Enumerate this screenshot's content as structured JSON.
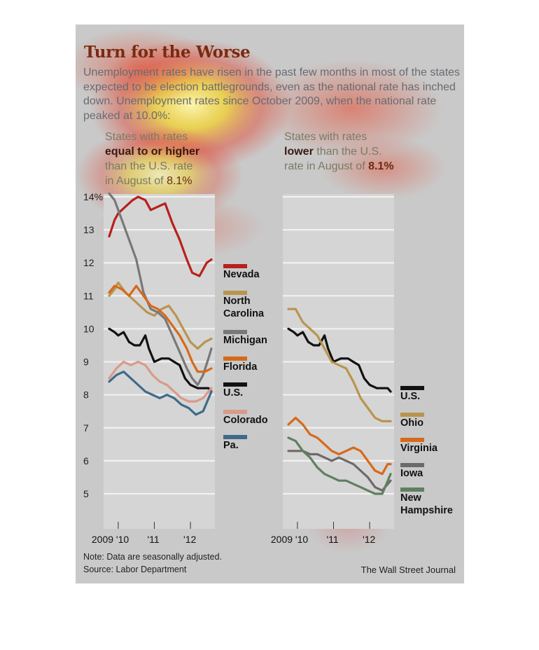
{
  "header": {
    "title": "Turn for the Worse",
    "description": "Unemployment rates have risen in the past few months in most of the states expected to be election battlegrounds, even as the national rate has inched down. Unemployment rates since October 2009, when the national rate peaked at 10.0%:"
  },
  "panels": {
    "left": {
      "line1": "States with rates",
      "line2": "equal to or higher",
      "line3": "than the U.S. rate",
      "line4_prefix": "in August of ",
      "line4_value": "8.1%"
    },
    "right": {
      "line1": "States with rates",
      "line2_bold": "lower",
      "line2_rest": " than the U.S.",
      "line3_prefix": "rate in August of ",
      "line3_value": "8.1%"
    }
  },
  "footer": {
    "note": "Note: Data are seasonally adjusted.",
    "source": "Source: Labor Department",
    "credit": "The Wall Street Journal"
  },
  "chart_data": [
    {
      "type": "line",
      "ylim": [
        4.4,
        14.4
      ],
      "y_ticks": [
        14,
        13,
        12,
        11,
        10,
        9,
        8,
        7,
        6,
        5
      ],
      "y_tick_labels": [
        "14%",
        "13",
        "12",
        "11",
        "10",
        "9",
        "8",
        "7",
        "6",
        "5"
      ],
      "xlim": [
        2009.75,
        2012.6
      ],
      "x_ticks": [
        2010,
        2011,
        2012
      ],
      "x_tick_labels": [
        "2009 '10",
        "'11",
        "'12"
      ],
      "series": [
        {
          "name": "Nevada",
          "color": "#b8201c",
          "points": [
            [
              2009.75,
              12.8
            ],
            [
              2009.9,
              13.3
            ],
            [
              2010.0,
              13.5
            ],
            [
              2010.2,
              13.7
            ],
            [
              2010.4,
              13.9
            ],
            [
              2010.55,
              14.0
            ],
            [
              2010.75,
              13.9
            ],
            [
              2010.9,
              13.6
            ],
            [
              2011.1,
              13.7
            ],
            [
              2011.3,
              13.8
            ],
            [
              2011.5,
              13.2
            ],
            [
              2011.7,
              12.7
            ],
            [
              2011.9,
              12.1
            ],
            [
              2012.05,
              11.7
            ],
            [
              2012.25,
              11.6
            ],
            [
              2012.45,
              12.0
            ],
            [
              2012.58,
              12.1
            ]
          ]
        },
        {
          "name": "North Carolina",
          "color": "#b8954e",
          "points": [
            [
              2009.75,
              11.0
            ],
            [
              2009.9,
              11.2
            ],
            [
              2010.0,
              11.4
            ],
            [
              2010.2,
              11.1
            ],
            [
              2010.4,
              10.9
            ],
            [
              2010.6,
              10.7
            ],
            [
              2010.8,
              10.5
            ],
            [
              2011.0,
              10.4
            ],
            [
              2011.2,
              10.6
            ],
            [
              2011.4,
              10.7
            ],
            [
              2011.6,
              10.4
            ],
            [
              2011.8,
              10.0
            ],
            [
              2012.0,
              9.6
            ],
            [
              2012.2,
              9.4
            ],
            [
              2012.4,
              9.6
            ],
            [
              2012.58,
              9.7
            ]
          ]
        },
        {
          "name": "Michigan",
          "color": "#7a7778",
          "points": [
            [
              2009.75,
              14.1
            ],
            [
              2009.9,
              13.9
            ],
            [
              2010.1,
              13.3
            ],
            [
              2010.3,
              12.7
            ],
            [
              2010.5,
              12.1
            ],
            [
              2010.7,
              11.1
            ],
            [
              2010.9,
              10.6
            ],
            [
              2011.1,
              10.5
            ],
            [
              2011.3,
              10.3
            ],
            [
              2011.5,
              9.8
            ],
            [
              2011.7,
              9.3
            ],
            [
              2011.9,
              8.8
            ],
            [
              2012.05,
              8.5
            ],
            [
              2012.2,
              8.3
            ],
            [
              2012.35,
              8.6
            ],
            [
              2012.5,
              9.1
            ],
            [
              2012.58,
              9.4
            ]
          ]
        },
        {
          "name": "Florida",
          "color": "#d66a1a",
          "points": [
            [
              2009.75,
              11.1
            ],
            [
              2009.9,
              11.3
            ],
            [
              2010.1,
              11.2
            ],
            [
              2010.3,
              11.0
            ],
            [
              2010.5,
              11.3
            ],
            [
              2010.7,
              11.0
            ],
            [
              2010.9,
              10.7
            ],
            [
              2011.1,
              10.6
            ],
            [
              2011.3,
              10.4
            ],
            [
              2011.5,
              10.1
            ],
            [
              2011.7,
              9.8
            ],
            [
              2011.9,
              9.4
            ],
            [
              2012.05,
              9.0
            ],
            [
              2012.2,
              8.7
            ],
            [
              2012.4,
              8.7
            ],
            [
              2012.58,
              8.8
            ]
          ]
        },
        {
          "name": "U.S.",
          "color": "#111111",
          "points": [
            [
              2009.75,
              10.0
            ],
            [
              2009.9,
              9.9
            ],
            [
              2010.0,
              9.8
            ],
            [
              2010.15,
              9.9
            ],
            [
              2010.3,
              9.6
            ],
            [
              2010.45,
              9.5
            ],
            [
              2010.6,
              9.5
            ],
            [
              2010.75,
              9.8
            ],
            [
              2010.85,
              9.4
            ],
            [
              2011.0,
              9.0
            ],
            [
              2011.2,
              9.1
            ],
            [
              2011.4,
              9.1
            ],
            [
              2011.55,
              9.0
            ],
            [
              2011.7,
              8.9
            ],
            [
              2011.85,
              8.5
            ],
            [
              2012.0,
              8.3
            ],
            [
              2012.2,
              8.2
            ],
            [
              2012.35,
              8.2
            ],
            [
              2012.5,
              8.2
            ],
            [
              2012.58,
              8.1
            ]
          ]
        },
        {
          "name": "Colorado",
          "color": "#d99a8a",
          "points": [
            [
              2009.75,
              8.5
            ],
            [
              2009.95,
              8.8
            ],
            [
              2010.15,
              9.0
            ],
            [
              2010.35,
              8.9
            ],
            [
              2010.55,
              9.0
            ],
            [
              2010.75,
              8.9
            ],
            [
              2010.95,
              8.6
            ],
            [
              2011.15,
              8.4
            ],
            [
              2011.35,
              8.3
            ],
            [
              2011.55,
              8.1
            ],
            [
              2011.75,
              7.9
            ],
            [
              2011.95,
              7.8
            ],
            [
              2012.15,
              7.8
            ],
            [
              2012.35,
              7.9
            ],
            [
              2012.58,
              8.2
            ]
          ]
        },
        {
          "name": "Pa.",
          "color": "#3f6a8a",
          "points": [
            [
              2009.75,
              8.4
            ],
            [
              2009.95,
              8.6
            ],
            [
              2010.15,
              8.7
            ],
            [
              2010.35,
              8.5
            ],
            [
              2010.55,
              8.3
            ],
            [
              2010.75,
              8.1
            ],
            [
              2010.95,
              8.0
            ],
            [
              2011.15,
              7.9
            ],
            [
              2011.35,
              8.0
            ],
            [
              2011.55,
              7.9
            ],
            [
              2011.75,
              7.7
            ],
            [
              2011.95,
              7.6
            ],
            [
              2012.15,
              7.4
            ],
            [
              2012.35,
              7.5
            ],
            [
              2012.58,
              8.1
            ]
          ]
        }
      ]
    },
    {
      "type": "line",
      "ylim": [
        4.4,
        14.4
      ],
      "xlim": [
        2009.75,
        2012.6
      ],
      "x_ticks": [
        2010,
        2011,
        2012
      ],
      "x_tick_labels": [
        "2009 '10",
        "'11",
        "'12"
      ],
      "series": [
        {
          "name": "U.S.",
          "color": "#111111",
          "points": [
            [
              2009.75,
              10.0
            ],
            [
              2009.9,
              9.9
            ],
            [
              2010.0,
              9.8
            ],
            [
              2010.15,
              9.9
            ],
            [
              2010.3,
              9.6
            ],
            [
              2010.45,
              9.5
            ],
            [
              2010.6,
              9.5
            ],
            [
              2010.75,
              9.8
            ],
            [
              2010.85,
              9.4
            ],
            [
              2011.0,
              9.0
            ],
            [
              2011.2,
              9.1
            ],
            [
              2011.4,
              9.1
            ],
            [
              2011.55,
              9.0
            ],
            [
              2011.7,
              8.9
            ],
            [
              2011.85,
              8.5
            ],
            [
              2012.0,
              8.3
            ],
            [
              2012.2,
              8.2
            ],
            [
              2012.35,
              8.2
            ],
            [
              2012.5,
              8.2
            ],
            [
              2012.58,
              8.1
            ]
          ]
        },
        {
          "name": "Ohio",
          "color": "#b8954e",
          "points": [
            [
              2009.75,
              10.6
            ],
            [
              2009.95,
              10.6
            ],
            [
              2010.15,
              10.2
            ],
            [
              2010.35,
              10.0
            ],
            [
              2010.55,
              9.8
            ],
            [
              2010.75,
              9.4
            ],
            [
              2010.95,
              9.0
            ],
            [
              2011.15,
              8.9
            ],
            [
              2011.35,
              8.8
            ],
            [
              2011.55,
              8.4
            ],
            [
              2011.75,
              7.9
            ],
            [
              2011.95,
              7.6
            ],
            [
              2012.15,
              7.3
            ],
            [
              2012.35,
              7.2
            ],
            [
              2012.58,
              7.2
            ]
          ]
        },
        {
          "name": "Virginia",
          "color": "#d66a1a",
          "points": [
            [
              2009.75,
              7.1
            ],
            [
              2009.95,
              7.3
            ],
            [
              2010.15,
              7.1
            ],
            [
              2010.35,
              6.8
            ],
            [
              2010.55,
              6.7
            ],
            [
              2010.75,
              6.5
            ],
            [
              2010.95,
              6.3
            ],
            [
              2011.15,
              6.2
            ],
            [
              2011.35,
              6.3
            ],
            [
              2011.55,
              6.4
            ],
            [
              2011.75,
              6.3
            ],
            [
              2011.95,
              6.0
            ],
            [
              2012.15,
              5.7
            ],
            [
              2012.35,
              5.6
            ],
            [
              2012.5,
              5.9
            ],
            [
              2012.58,
              5.9
            ]
          ]
        },
        {
          "name": "Iowa",
          "color": "#6e6a6a",
          "points": [
            [
              2009.75,
              6.3
            ],
            [
              2009.95,
              6.3
            ],
            [
              2010.15,
              6.3
            ],
            [
              2010.35,
              6.2
            ],
            [
              2010.55,
              6.2
            ],
            [
              2010.75,
              6.1
            ],
            [
              2010.95,
              6.0
            ],
            [
              2011.15,
              6.1
            ],
            [
              2011.35,
              6.0
            ],
            [
              2011.55,
              5.9
            ],
            [
              2011.75,
              5.7
            ],
            [
              2011.95,
              5.5
            ],
            [
              2012.15,
              5.2
            ],
            [
              2012.35,
              5.1
            ],
            [
              2012.58,
              5.4
            ]
          ]
        },
        {
          "name": "New Hampshire",
          "color": "#5f7f62",
          "points": [
            [
              2009.75,
              6.7
            ],
            [
              2009.95,
              6.6
            ],
            [
              2010.15,
              6.3
            ],
            [
              2010.35,
              6.1
            ],
            [
              2010.55,
              5.8
            ],
            [
              2010.75,
              5.6
            ],
            [
              2010.95,
              5.5
            ],
            [
              2011.15,
              5.4
            ],
            [
              2011.35,
              5.4
            ],
            [
              2011.55,
              5.3
            ],
            [
              2011.75,
              5.2
            ],
            [
              2011.95,
              5.1
            ],
            [
              2012.15,
              5.0
            ],
            [
              2012.35,
              5.0
            ],
            [
              2012.58,
              5.6
            ]
          ]
        }
      ]
    }
  ]
}
